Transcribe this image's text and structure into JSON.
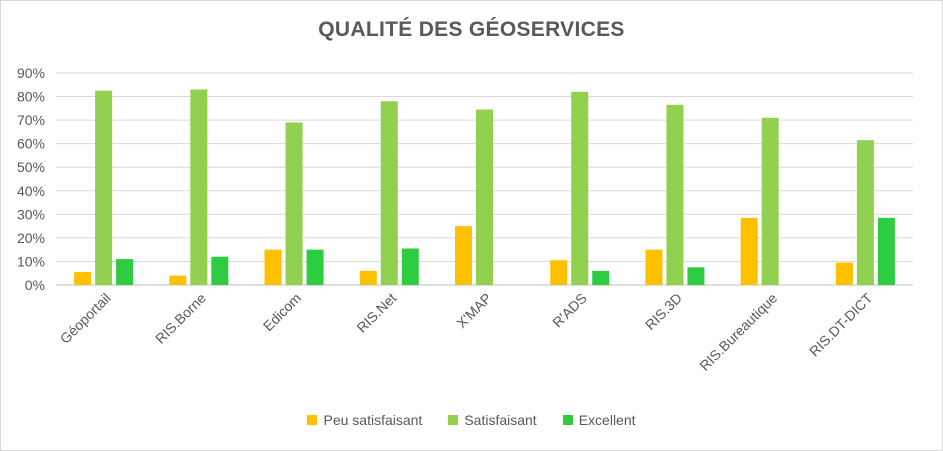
{
  "chart_data": {
    "type": "bar",
    "title": "QUALITÉ DES GÉOSERVICES",
    "categories": [
      "Géoportail",
      "RIS.Borne",
      "Edicom",
      "RIS.Net",
      "X'MAP",
      "R'ADS",
      "RIS.3D",
      "RIS.Bureautique",
      "RIS.DT-DICT"
    ],
    "series": [
      {
        "name": "Peu satisfaisant",
        "color": "#ffc000",
        "values": [
          5.5,
          4,
          15,
          6,
          25,
          10.5,
          15,
          28.5,
          9.5
        ]
      },
      {
        "name": "Satisfaisant",
        "color": "#92d050",
        "values": [
          82.5,
          83,
          69,
          78,
          74.5,
          82,
          76.5,
          71,
          61.5
        ]
      },
      {
        "name": "Excellent",
        "color": "#2ecc40",
        "values": [
          11,
          12,
          15,
          15.5,
          0,
          6,
          7.5,
          0,
          28.5
        ]
      }
    ],
    "yticks": [
      "0%",
      "10%",
      "20%",
      "30%",
      "40%",
      "50%",
      "60%",
      "70%",
      "80%",
      "90%"
    ],
    "ylim": [
      0,
      90
    ],
    "xlabel": "",
    "ylabel": "",
    "grid": true,
    "legend_position": "bottom"
  }
}
